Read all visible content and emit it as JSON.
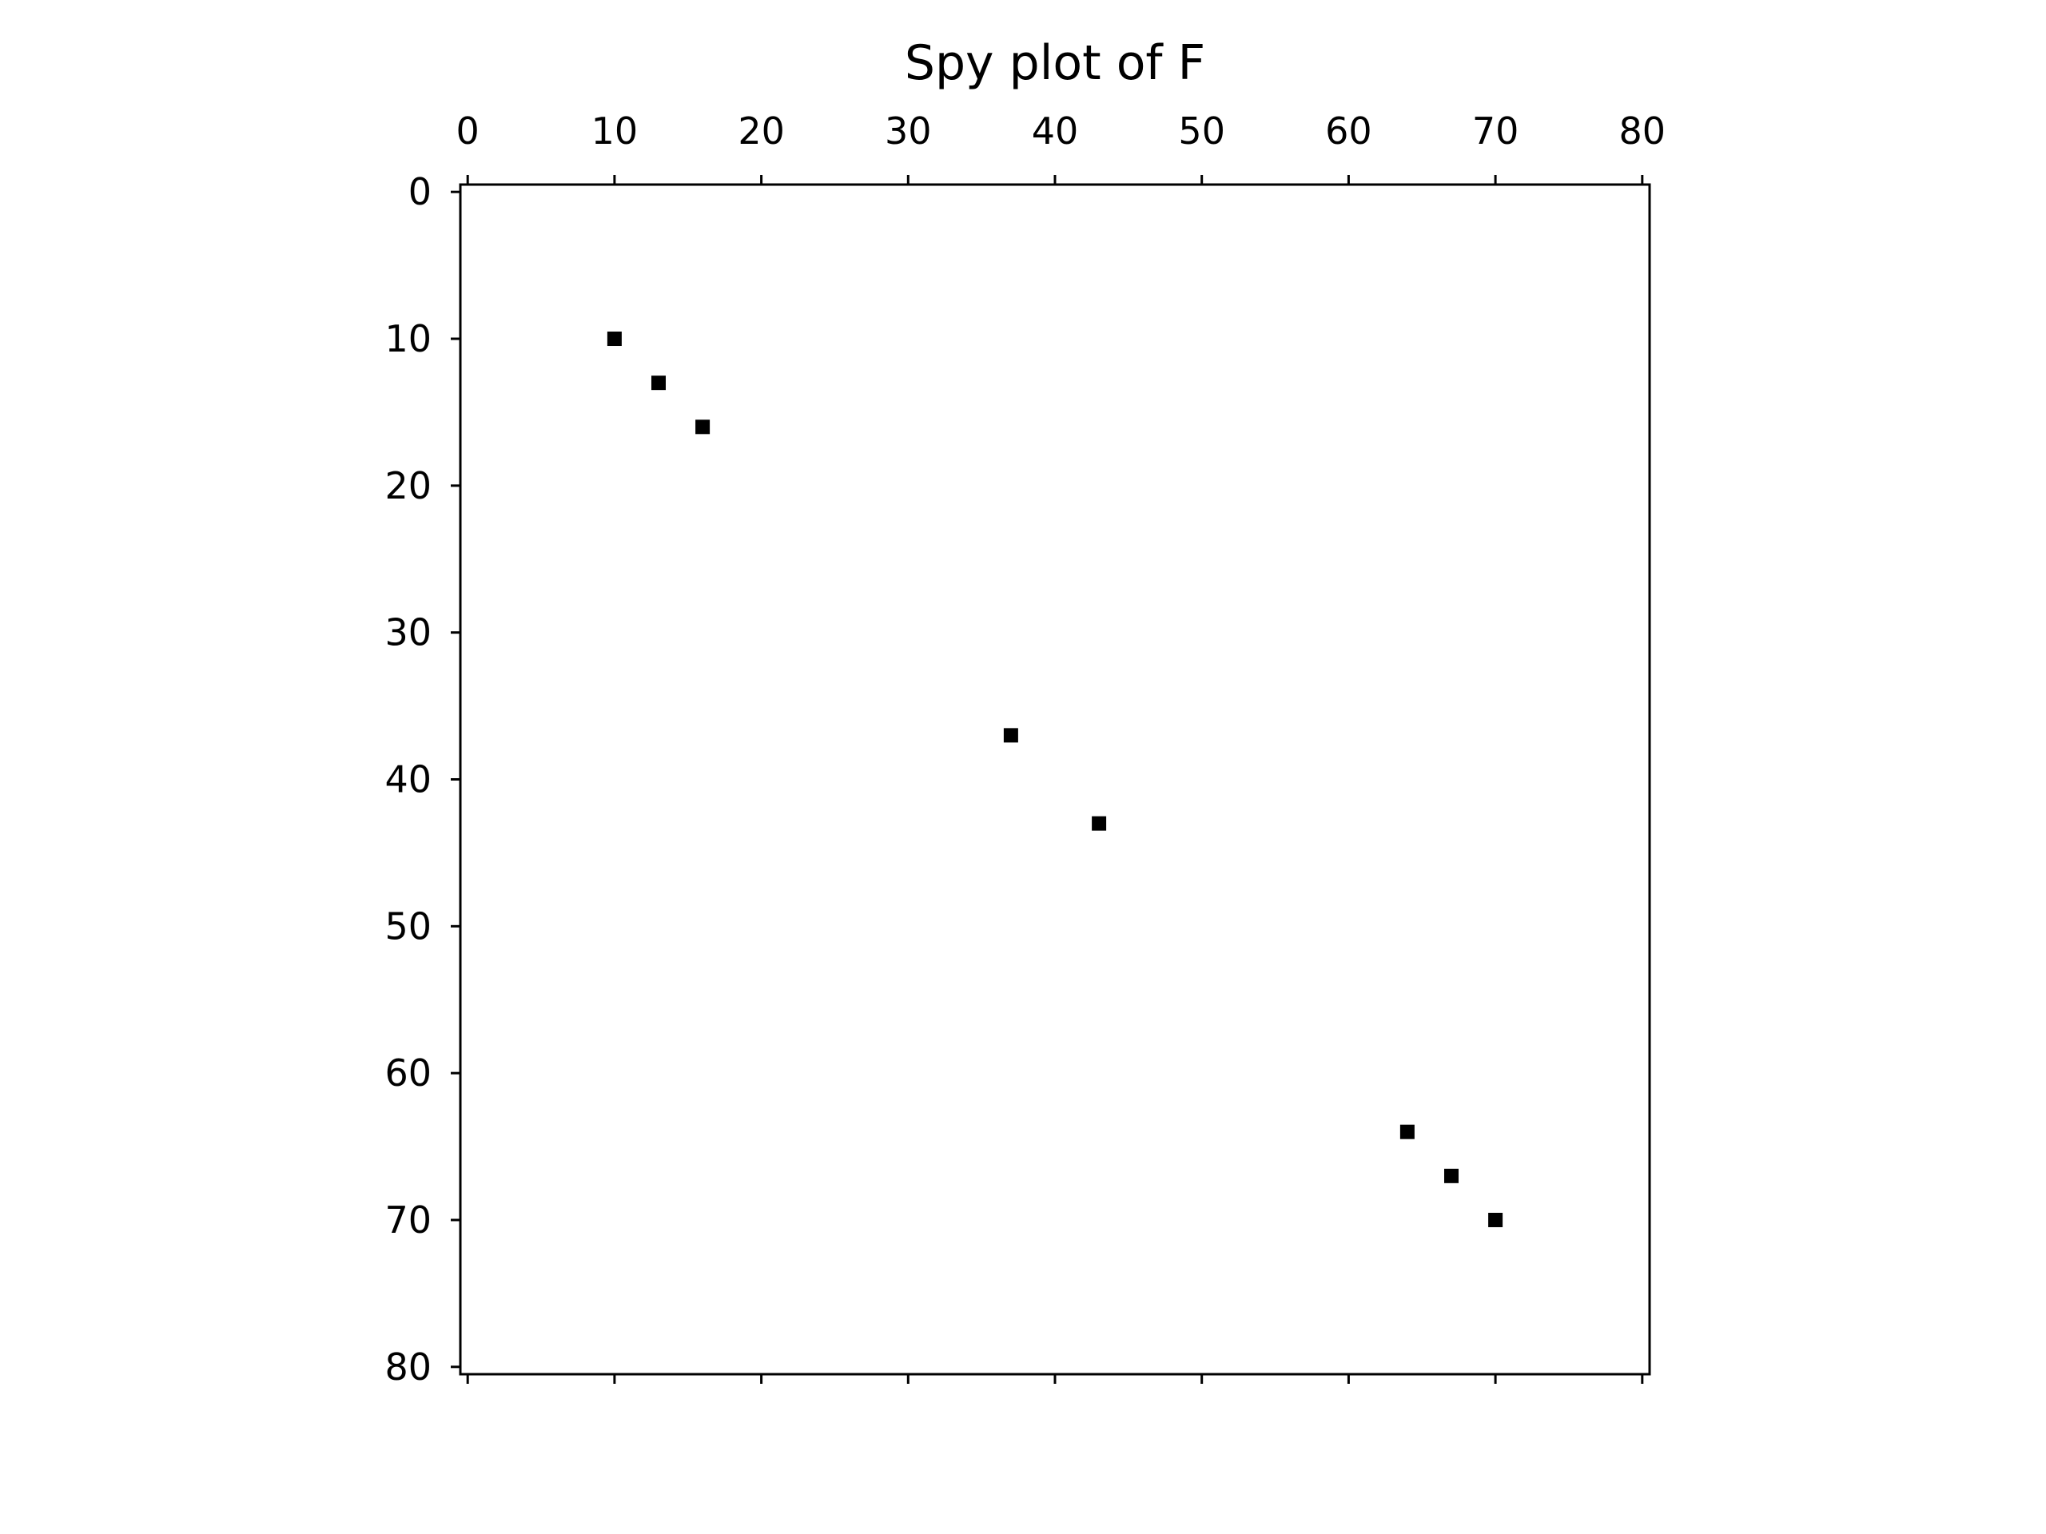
{
  "chart_data": {
    "type": "scatter",
    "title": "Spy plot of F",
    "xlabel": "",
    "ylabel": "",
    "xlim": [
      -0.5,
      80.5
    ],
    "ylim": [
      80.5,
      -0.5
    ],
    "x_axis_position": "top",
    "y_axis_inverted": true,
    "grid": false,
    "marker": "square",
    "marker_color": "#000000",
    "x_ticks": [
      0,
      10,
      20,
      30,
      40,
      50,
      60,
      70,
      80
    ],
    "y_ticks": [
      0,
      10,
      20,
      30,
      40,
      50,
      60,
      70,
      80
    ],
    "x_tick_labels": [
      "0",
      "10",
      "20",
      "30",
      "40",
      "50",
      "60",
      "70",
      "80"
    ],
    "y_tick_labels": [
      "0",
      "10",
      "20",
      "30",
      "40",
      "50",
      "60",
      "70",
      "80"
    ],
    "points": [
      {
        "x": 10,
        "y": 10
      },
      {
        "x": 13,
        "y": 13
      },
      {
        "x": 16,
        "y": 16
      },
      {
        "x": 37,
        "y": 37
      },
      {
        "x": 43,
        "y": 43
      },
      {
        "x": 64,
        "y": 64
      },
      {
        "x": 67,
        "y": 67
      },
      {
        "x": 70,
        "y": 70
      }
    ]
  }
}
